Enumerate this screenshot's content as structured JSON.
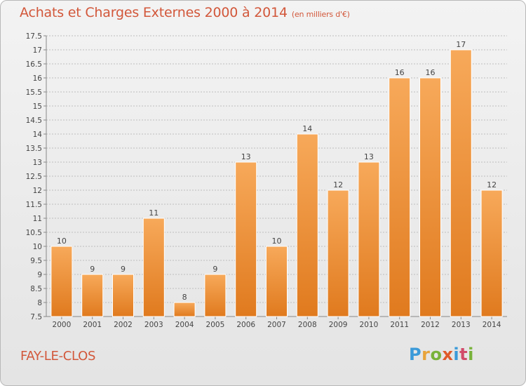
{
  "title": "Achats et Charges Externes 2000 à 2014",
  "subtitle": "(en milliers d'€)",
  "commune": "FAY-LE-CLOS",
  "logo": {
    "p": "P",
    "r": "r",
    "o": "o",
    "x": "x",
    "i1": "i",
    "t": "t",
    "i2": "i"
  },
  "colors": {
    "bar_top": "#f7a95a",
    "bar_bottom": "#e07a1e",
    "title": "#d2573a",
    "grid": "#bdbdbd"
  },
  "chart_data": {
    "type": "bar",
    "categories": [
      "2000",
      "2001",
      "2002",
      "2003",
      "2004",
      "2005",
      "2006",
      "2007",
      "2008",
      "2009",
      "2010",
      "2011",
      "2012",
      "2013",
      "2014"
    ],
    "values": [
      10,
      9,
      9,
      11,
      8,
      9,
      13,
      10,
      14,
      12,
      13,
      16,
      16,
      17,
      12
    ],
    "ylim": [
      7.5,
      17.5
    ],
    "yticks": [
      "7.5",
      "8",
      "8.5",
      "9",
      "9.5",
      "10",
      "10.5",
      "11",
      "11.5",
      "12",
      "12.5",
      "13",
      "13.5",
      "14",
      "14.5",
      "15",
      "15.5",
      "16",
      "16.5",
      "17",
      "17.5"
    ],
    "grid": true
  }
}
